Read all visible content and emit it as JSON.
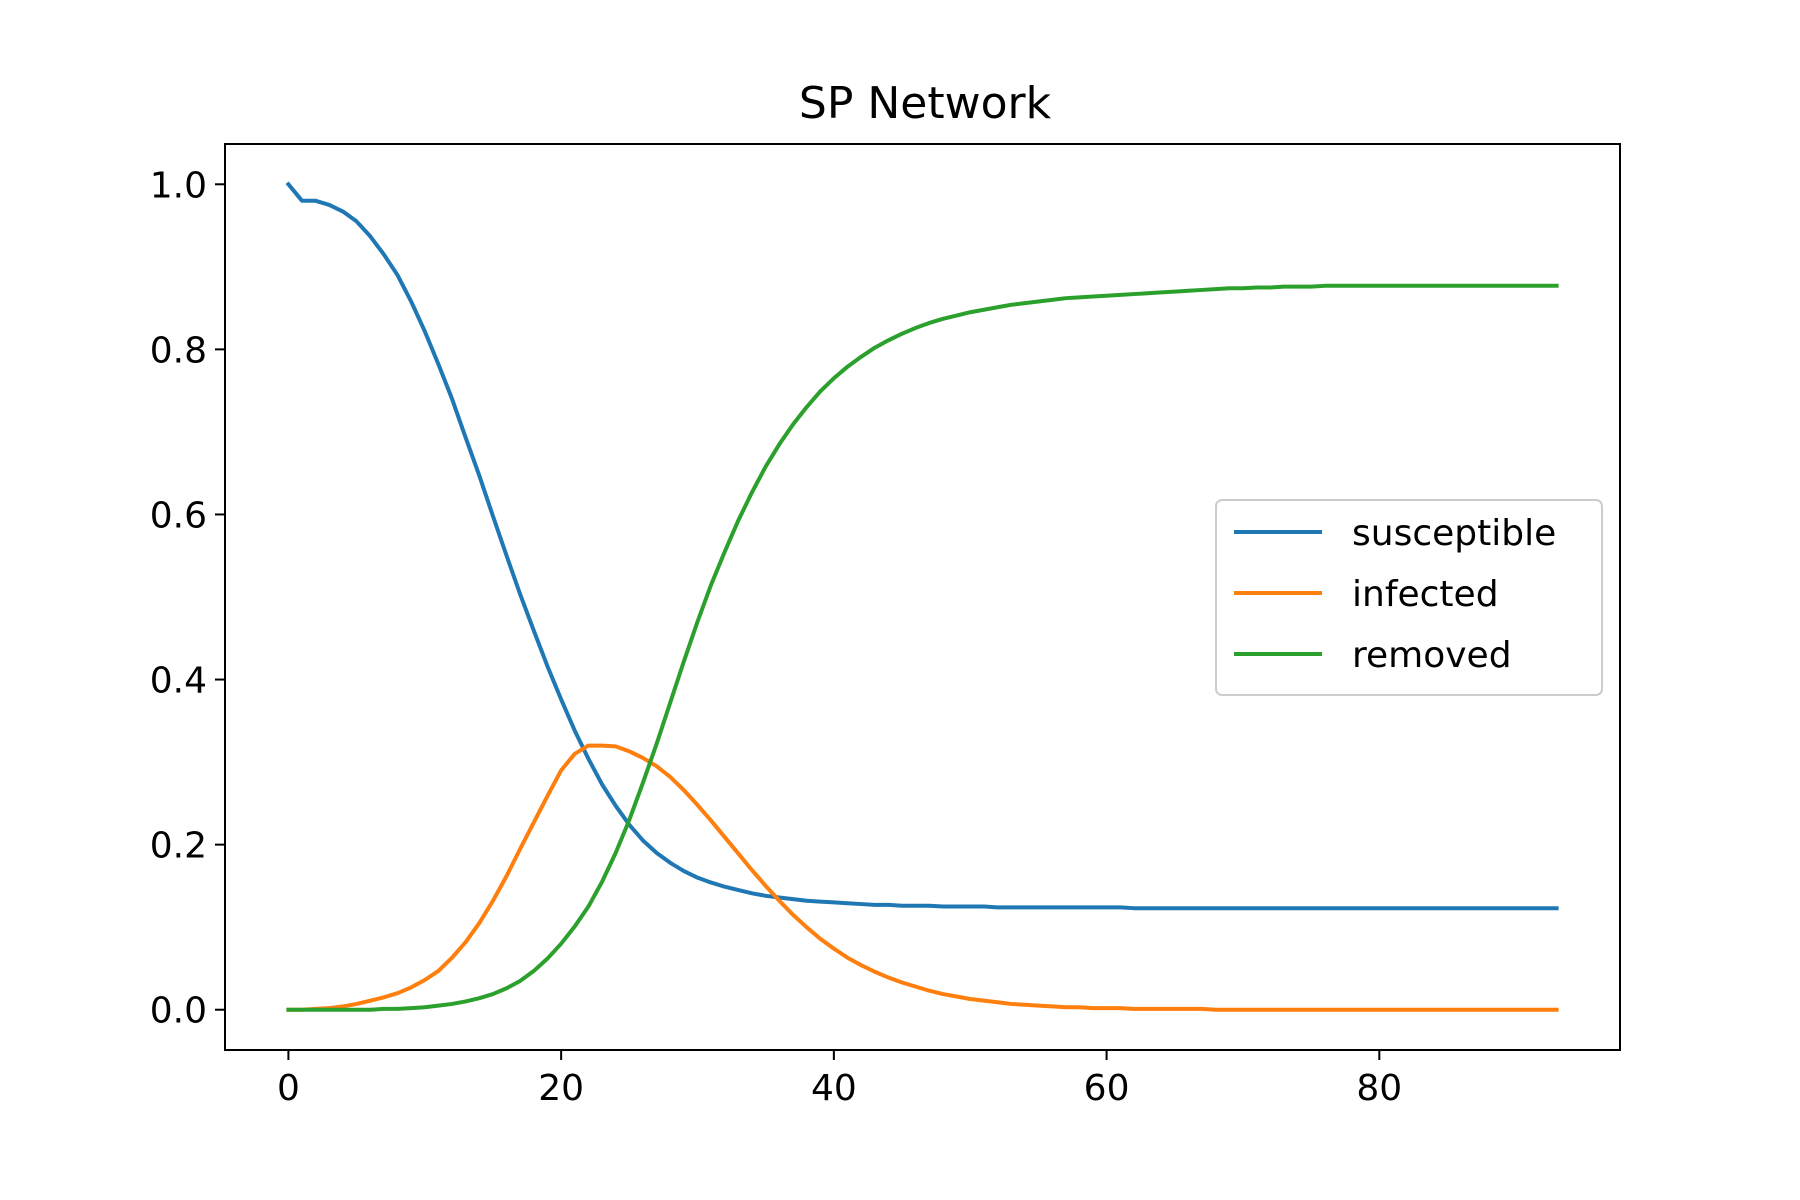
{
  "chart_data": {
    "type": "line",
    "title": "SP Network",
    "xlabel": "",
    "ylabel": "",
    "xlim": [
      -4.65,
      97.65
    ],
    "ylim": [
      -0.0488,
      1.0488
    ],
    "xticks": [
      0,
      20,
      40,
      60,
      80
    ],
    "xtick_labels": [
      "0",
      "20",
      "40",
      "60",
      "80"
    ],
    "yticks": [
      0.0,
      0.2,
      0.4,
      0.6,
      0.8,
      1.0
    ],
    "ytick_labels": [
      "0.0",
      "0.2",
      "0.4",
      "0.6",
      "0.8",
      "1.0"
    ],
    "grid": false,
    "legend_position": "center-right",
    "x": [
      0,
      1,
      2,
      3,
      4,
      5,
      6,
      7,
      8,
      9,
      10,
      11,
      12,
      13,
      14,
      15,
      16,
      17,
      18,
      19,
      20,
      21,
      22,
      23,
      24,
      25,
      26,
      27,
      28,
      29,
      30,
      31,
      32,
      33,
      34,
      35,
      36,
      37,
      38,
      39,
      40,
      41,
      42,
      43,
      44,
      45,
      46,
      47,
      48,
      49,
      50,
      51,
      52,
      53,
      54,
      55,
      56,
      57,
      58,
      59,
      60,
      61,
      62,
      63,
      64,
      65,
      66,
      67,
      68,
      69,
      70,
      71,
      72,
      73,
      74,
      75,
      76,
      77,
      78,
      79,
      80,
      81,
      82,
      83,
      84,
      85,
      86,
      87,
      88,
      89,
      90,
      91,
      92,
      93
    ],
    "series": [
      {
        "name": "susceptible",
        "color": "#1f77b4",
        "values": [
          1.0,
          0.98,
          0.98,
          0.975,
          0.967,
          0.955,
          0.937,
          0.915,
          0.89,
          0.858,
          0.822,
          0.782,
          0.74,
          0.693,
          0.647,
          0.598,
          0.55,
          0.503,
          0.459,
          0.416,
          0.376,
          0.338,
          0.304,
          0.273,
          0.247,
          0.224,
          0.205,
          0.19,
          0.178,
          0.168,
          0.16,
          0.154,
          0.149,
          0.145,
          0.141,
          0.138,
          0.136,
          0.134,
          0.132,
          0.131,
          0.13,
          0.129,
          0.128,
          0.127,
          0.127,
          0.126,
          0.126,
          0.126,
          0.125,
          0.125,
          0.125,
          0.125,
          0.124,
          0.124,
          0.124,
          0.124,
          0.124,
          0.124,
          0.124,
          0.124,
          0.124,
          0.124,
          0.123,
          0.123,
          0.123,
          0.123,
          0.123,
          0.123,
          0.123,
          0.123,
          0.123,
          0.123,
          0.123,
          0.123,
          0.123,
          0.123,
          0.123,
          0.123,
          0.123,
          0.123,
          0.123,
          0.123,
          0.123,
          0.123,
          0.123,
          0.123,
          0.123,
          0.123,
          0.123,
          0.123,
          0.123,
          0.123,
          0.123,
          0.123
        ]
      },
      {
        "name": "infected",
        "color": "#ff7f0e",
        "values": [
          0.0,
          0.0,
          0.001,
          0.002,
          0.004,
          0.007,
          0.011,
          0.015,
          0.02,
          0.027,
          0.036,
          0.047,
          0.063,
          0.082,
          0.105,
          0.132,
          0.162,
          0.195,
          0.227,
          0.259,
          0.29,
          0.31,
          0.32,
          0.32,
          0.319,
          0.313,
          0.305,
          0.295,
          0.282,
          0.266,
          0.248,
          0.229,
          0.209,
          0.189,
          0.169,
          0.15,
          0.132,
          0.115,
          0.1,
          0.086,
          0.074,
          0.063,
          0.054,
          0.046,
          0.039,
          0.033,
          0.028,
          0.023,
          0.019,
          0.016,
          0.013,
          0.011,
          0.009,
          0.007,
          0.006,
          0.005,
          0.004,
          0.003,
          0.003,
          0.002,
          0.002,
          0.002,
          0.001,
          0.001,
          0.001,
          0.001,
          0.001,
          0.001,
          0.0,
          0.0,
          0.0,
          0.0,
          0.0,
          0.0,
          0.0,
          0.0,
          0.0,
          0.0,
          0.0,
          0.0,
          0.0,
          0.0,
          0.0,
          0.0,
          0.0,
          0.0,
          0.0,
          0.0,
          0.0,
          0.0,
          0.0,
          0.0,
          0.0,
          0.0
        ]
      },
      {
        "name": "removed",
        "color": "#2ca02c",
        "values": [
          0.0,
          0.0,
          0.0,
          0.0,
          0.0,
          0.0,
          0.0,
          0.001,
          0.001,
          0.002,
          0.003,
          0.005,
          0.007,
          0.01,
          0.014,
          0.019,
          0.026,
          0.035,
          0.047,
          0.062,
          0.08,
          0.101,
          0.125,
          0.155,
          0.19,
          0.23,
          0.275,
          0.322,
          0.372,
          0.422,
          0.47,
          0.515,
          0.555,
          0.593,
          0.627,
          0.658,
          0.685,
          0.709,
          0.73,
          0.749,
          0.765,
          0.779,
          0.791,
          0.802,
          0.811,
          0.819,
          0.826,
          0.832,
          0.837,
          0.841,
          0.845,
          0.848,
          0.851,
          0.854,
          0.856,
          0.858,
          0.86,
          0.862,
          0.863,
          0.864,
          0.865,
          0.866,
          0.867,
          0.868,
          0.869,
          0.87,
          0.871,
          0.872,
          0.873,
          0.874,
          0.874,
          0.875,
          0.875,
          0.876,
          0.876,
          0.876,
          0.877,
          0.877,
          0.877,
          0.877,
          0.877,
          0.877,
          0.877,
          0.877,
          0.877,
          0.877,
          0.877,
          0.877,
          0.877,
          0.877,
          0.877,
          0.877,
          0.877,
          0.877
        ]
      }
    ]
  }
}
